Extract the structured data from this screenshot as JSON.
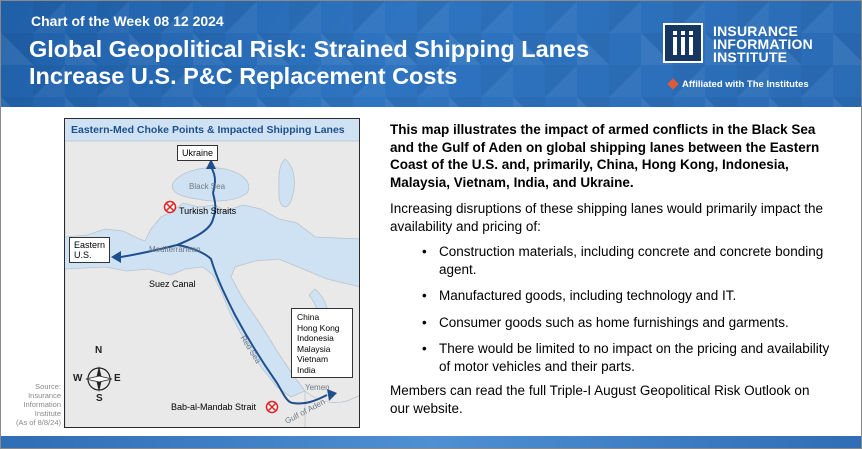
{
  "header": {
    "week_label": "Chart of the Week 08 12 2024",
    "title": "Global Geopolitical Risk: Strained Shipping Lanes Increase U.S. P&C Replacement Costs",
    "logo_line1": "INSURANCE",
    "logo_line2": "INFORMATION",
    "logo_line3": "INSTITUTE",
    "affiliation": "Affiliated with The Institutes"
  },
  "map": {
    "title": "Eastern-Med Choke Points & Impacted Shipping Lanes",
    "labels": {
      "ukraine": "Ukraine",
      "black_sea": "Black Sea",
      "turkish_straits": "Turkish Straits",
      "eastern_us_line1": "Eastern",
      "eastern_us_line2": "U.S.",
      "mediterranean": "Mediterranean",
      "suez_canal": "Suez Canal",
      "red_sea": "Red Sea",
      "yemen": "Yemen",
      "gulf_of_aden": "Gulf of Aden",
      "bab_al_mandab": "Bab-al-Mandab Strait"
    },
    "destinations": [
      "China",
      "Hong Kong",
      "Indonesia",
      "Malaysia",
      "Vietnam",
      "India"
    ],
    "compass": {
      "n": "N",
      "s": "S",
      "e": "E",
      "w": "W"
    },
    "source": [
      "Source:",
      "Insurance",
      "Information",
      "Institute",
      "(As of 8/8/24)"
    ],
    "colors": {
      "route": "#1f4e8c",
      "choke_point": "#e02020",
      "land": "#e8e8e8",
      "water": "#cfe2f3"
    }
  },
  "text": {
    "lead": "This map illustrates the impact of armed conflicts in the Black Sea and the Gulf of Aden on global shipping lanes between the Eastern Coast of the U.S. and, primarily, China, Hong Kong, Indonesia, Malaysia, Vietnam, India, and Ukraine.",
    "intro": "Increasing disruptions of these shipping lanes would primarily impact the availability and pricing of:",
    "bullet_char": "•",
    "bullets": [
      "Construction materials, including concrete and concrete bonding agent.",
      "Manufactured goods, including technology and IT.",
      "Consumer goods such as home furnishings and garments.",
      "There would be limited to no impact on the pricing and availability of motor vehicles and their parts."
    ],
    "outro": "Members can read the full Triple-I August Geopolitical Risk Outlook on our website."
  }
}
